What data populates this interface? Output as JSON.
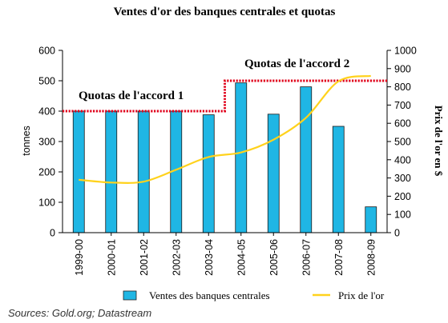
{
  "chart_data": {
    "type": "bar",
    "title": "Ventes d'or des banques centrales et quotas",
    "categories": [
      "1999-00",
      "2000-01",
      "2001-02",
      "2002-03",
      "2003-04",
      "2004-05",
      "2005-06",
      "2006-07",
      "2007-08",
      "2008-09"
    ],
    "series": [
      {
        "name": "Ventes des banques centrales",
        "type": "bar",
        "axis": "left",
        "color": "#1fb6e4",
        "values": [
          400,
          400,
          400,
          400,
          388,
          493,
          390,
          480,
          350,
          85
        ]
      },
      {
        "name": "Prix de l'or",
        "type": "line",
        "axis": "right",
        "color": "#ffd21c",
        "values": [
          290,
          275,
          280,
          345,
          415,
          440,
          510,
          630,
          830,
          860
        ]
      }
    ],
    "quotas": [
      {
        "label": "Quotas de l'accord 1",
        "value": 400,
        "from_category": "1999-00",
        "to_category": "2003-04",
        "color": "#e0001a"
      },
      {
        "label": "Quotas de l'accord 2",
        "value": 500,
        "from_category": "2004-05",
        "to_category": "2008-09",
        "color": "#e0001a"
      }
    ],
    "ylabel_left": "tonnes",
    "ylabel_right": "Prix de l'or en $",
    "ylim_left": [
      0,
      600
    ],
    "yticks_left": [
      0,
      100,
      200,
      300,
      400,
      500,
      600
    ],
    "ylim_right": [
      0,
      1000
    ],
    "yticks_right": [
      0,
      100,
      200,
      300,
      400,
      500,
      600,
      700,
      800,
      900,
      1000
    ],
    "grid": false,
    "legend_position": "bottom"
  },
  "source_note": "Sources: Gold.org; Datastream"
}
